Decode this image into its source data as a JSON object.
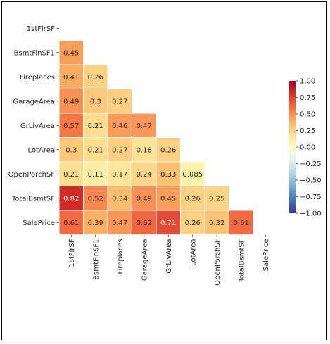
{
  "chart_data": {
    "type": "heatmap",
    "mask": "upper-triangle",
    "row_labels": [
      "1stFlrSF",
      "BsmtFinSF1",
      "Fireplaces",
      "GarageArea",
      "GrLivArea",
      "LotArea",
      "OpenPorchSF",
      "TotalBsmtSF",
      "SalePrice"
    ],
    "col_labels": [
      "1stFlrSF",
      "BsmtFinSF1",
      "Fireplaces",
      "GarageArea",
      "GrLivArea",
      "LotArea",
      "OpenPorchSF",
      "TotalBsmtSF",
      "SalePrice"
    ],
    "values": [
      [
        null,
        null,
        null,
        null,
        null,
        null,
        null,
        null,
        null
      ],
      [
        0.45,
        null,
        null,
        null,
        null,
        null,
        null,
        null,
        null
      ],
      [
        0.41,
        0.26,
        null,
        null,
        null,
        null,
        null,
        null,
        null
      ],
      [
        0.49,
        0.3,
        0.27,
        null,
        null,
        null,
        null,
        null,
        null
      ],
      [
        0.57,
        0.21,
        0.46,
        0.47,
        null,
        null,
        null,
        null,
        null
      ],
      [
        0.3,
        0.21,
        0.27,
        0.18,
        0.26,
        null,
        null,
        null,
        null
      ],
      [
        0.21,
        0.11,
        0.17,
        0.24,
        0.33,
        0.085,
        null,
        null,
        null
      ],
      [
        0.82,
        0.52,
        0.34,
        0.49,
        0.45,
        0.26,
        0.25,
        null,
        null
      ],
      [
        0.61,
        0.39,
        0.47,
        0.62,
        0.71,
        0.26,
        0.32,
        0.61,
        null
      ]
    ],
    "colormap": "RdYlBu_r",
    "vmin": -1.0,
    "vmax": 1.0,
    "annotate": true,
    "colorbar_ticks": [
      "1.00",
      "0.75",
      "0.50",
      "0.25",
      "0.00",
      "−0.25",
      "−0.50",
      "−0.75",
      "−1.00"
    ]
  }
}
